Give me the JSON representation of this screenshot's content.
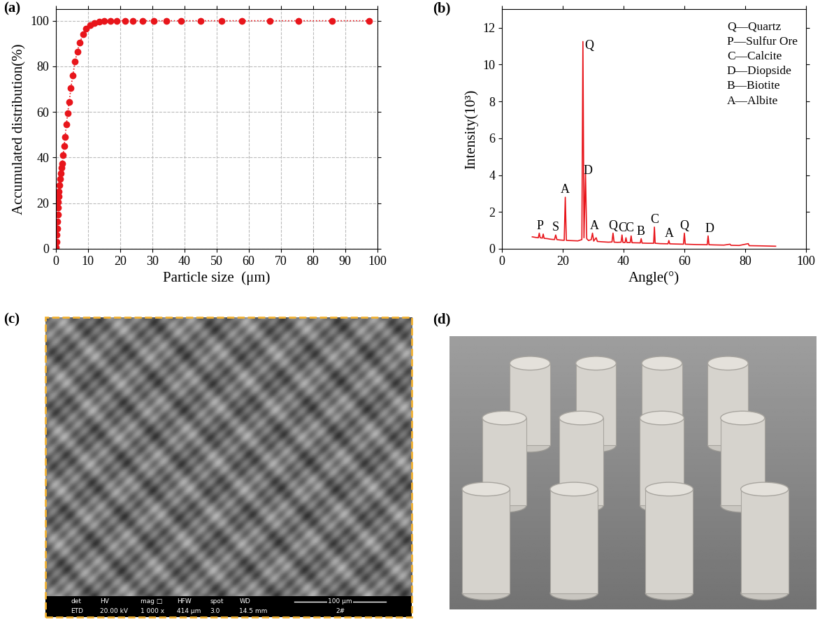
{
  "chart_data": [
    {
      "type": "line",
      "title": "(a)",
      "x_label": "Particle size  (μm)",
      "y_label": "Accumulated distribution(%)",
      "x": [
        0.1,
        0.2,
        0.3,
        0.4,
        0.5,
        0.6,
        0.7,
        0.8,
        0.9,
        1.0,
        1.2,
        1.4,
        1.6,
        1.8,
        2.0,
        2.3,
        2.6,
        2.9,
        3.3,
        3.7,
        4.2,
        4.7,
        5.3,
        6.0,
        6.7,
        7.5,
        8.5,
        9.5,
        10.7,
        12,
        13.5,
        15,
        17,
        19,
        21.5,
        24,
        27,
        30.5,
        34.5,
        39,
        45,
        51.5,
        58,
        66.5,
        75.5,
        86,
        97.5
      ],
      "values": [
        0.5,
        3,
        6,
        9,
        12,
        15,
        18,
        20.5,
        23,
        25,
        28,
        30.5,
        33,
        35.5,
        37.5,
        41,
        45,
        49,
        54.5,
        59.5,
        64.5,
        70.5,
        76,
        82,
        86.5,
        90.5,
        94,
        96.5,
        98,
        99,
        99.6,
        99.8,
        99.9,
        100,
        100,
        100,
        100,
        100,
        100,
        100,
        100,
        100,
        100,
        100,
        100,
        100,
        100
      ],
      "color": "#e8151b",
      "marker": "o",
      "line_style": "dotted",
      "grid": true,
      "xlim": [
        0,
        100
      ],
      "xticks": [
        0,
        10,
        20,
        30,
        40,
        50,
        60,
        70,
        80,
        90,
        100
      ],
      "ylim": [
        0,
        105
      ],
      "yticks": [
        0,
        20,
        40,
        60,
        80,
        100
      ]
    },
    {
      "type": "line",
      "title": "(b)",
      "x_label": "Angle(°)",
      "y_label": "Intensity(10³)",
      "x": [
        10,
        11,
        12,
        12.3,
        12.6,
        13.3,
        13.6,
        13.9,
        15,
        16,
        17.3,
        17.7,
        18.1,
        19,
        20.5,
        20.85,
        21.2,
        22,
        23.5,
        25,
        26.3,
        26.65,
        27.0,
        27.5,
        27.9,
        28.5,
        29.4,
        29.8,
        30.2,
        31.0,
        31.4,
        33,
        35,
        36.2,
        36.55,
        36.9,
        38,
        39.2,
        39.5,
        39.8,
        40.5,
        40.8,
        41.1,
        42.2,
        42.5,
        42.8,
        45.5,
        45.8,
        46.1,
        48,
        49.9,
        50.15,
        50.4,
        52,
        54.6,
        54.9,
        55.2,
        57,
        59.7,
        60.0,
        60.3,
        62,
        64,
        67.5,
        67.8,
        68.1,
        70,
        73,
        75,
        75.3,
        78,
        81,
        81.3,
        85,
        90
      ],
      "values": [
        0.65,
        0.62,
        0.6,
        0.85,
        0.6,
        0.58,
        0.8,
        0.57,
        0.55,
        0.52,
        0.5,
        0.75,
        0.5,
        0.48,
        0.46,
        2.8,
        0.46,
        0.45,
        0.44,
        0.43,
        0.5,
        11.25,
        0.6,
        4.1,
        0.55,
        0.45,
        0.5,
        0.85,
        0.42,
        0.6,
        0.4,
        0.38,
        0.36,
        0.37,
        0.85,
        0.36,
        0.35,
        0.36,
        0.75,
        0.35,
        0.34,
        0.6,
        0.34,
        0.34,
        0.7,
        0.33,
        0.32,
        0.55,
        0.31,
        0.3,
        0.3,
        1.18,
        0.3,
        0.28,
        0.27,
        0.45,
        0.27,
        0.26,
        0.25,
        0.85,
        0.25,
        0.24,
        0.23,
        0.22,
        0.7,
        0.22,
        0.21,
        0.2,
        0.25,
        0.19,
        0.18,
        0.28,
        0.17,
        0.16,
        0.14
      ],
      "color": "#e8151b",
      "line_style": "solid",
      "grid": false,
      "xlim": [
        0,
        100
      ],
      "xticks": [
        0,
        20,
        40,
        60,
        80,
        100
      ],
      "ylim": [
        0,
        13
      ],
      "yticks": [
        0,
        2,
        4,
        6,
        8,
        10,
        12
      ],
      "annotations": [
        {
          "text": "P",
          "x": 12.5,
          "y": 0.9
        },
        {
          "text": "S",
          "x": 17.6,
          "y": 0.85
        },
        {
          "text": "A",
          "x": 20.85,
          "y": 2.9
        },
        {
          "text": "Q",
          "x": 28.6,
          "y": 10.7
        },
        {
          "text": "D",
          "x": 28.4,
          "y": 3.9
        },
        {
          "text": "A",
          "x": 30.4,
          "y": 0.9
        },
        {
          "text": "Q",
          "x": 36.6,
          "y": 0.9
        },
        {
          "text": "C",
          "x": 39.6,
          "y": 0.8
        },
        {
          "text": "C",
          "x": 41.8,
          "y": 0.8
        },
        {
          "text": "B",
          "x": 45.7,
          "y": 0.6
        },
        {
          "text": "C",
          "x": 50.2,
          "y": 1.25
        },
        {
          "text": "A",
          "x": 55.0,
          "y": 0.5
        },
        {
          "text": "Q",
          "x": 60.0,
          "y": 0.9
        },
        {
          "text": "D",
          "x": 68.3,
          "y": 0.75
        }
      ],
      "key": [
        "Q—Quartz",
        "P—Sulfur Ore",
        "C—Calcite",
        "D—Diopside",
        "B—Biotite",
        "A—Albite"
      ]
    },
    {
      "type": "image",
      "title": "(c)",
      "info_bar": {
        "header": [
          "det",
          "HV",
          "mag □",
          "HFW",
          "spot",
          "WD"
        ],
        "values": [
          "ETD",
          "20.00 kV",
          "1 000 x",
          "414 μm",
          "3.0",
          "14.5 mm"
        ],
        "scale": "100 μm",
        "sample": "2#"
      }
    },
    {
      "type": "image",
      "title": "(d)"
    }
  ]
}
